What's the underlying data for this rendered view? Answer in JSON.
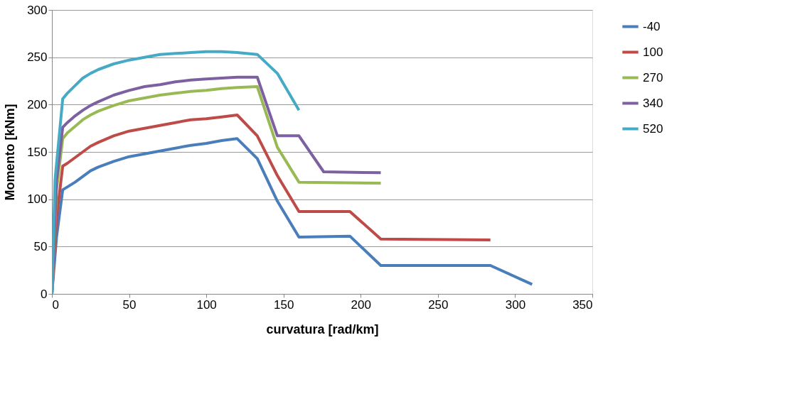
{
  "chart_data": {
    "type": "line",
    "xlabel": "curvatura [rad/km]",
    "ylabel": "Momento [kNm]",
    "xlim": [
      0,
      350
    ],
    "xticks": [
      0,
      50,
      100,
      150,
      200,
      250,
      300,
      350
    ],
    "ylim": [
      0,
      300
    ],
    "yticks": [
      0,
      50,
      100,
      150,
      200,
      250,
      300
    ],
    "grid": "y",
    "legend": "right",
    "marker": "none",
    "line_style": "solid",
    "series": [
      {
        "name": "-40",
        "color": "#4a7ebb",
        "x": [
          0,
          3,
          7,
          10,
          15,
          20,
          25,
          30,
          40,
          50,
          60,
          70,
          80,
          90,
          100,
          110,
          120,
          133,
          146,
          160,
          193,
          213,
          284,
          311
        ],
        "values": [
          0,
          60,
          110,
          113,
          118,
          124,
          130,
          134,
          140,
          145,
          148,
          151,
          154,
          157,
          159,
          162,
          164,
          143,
          98,
          60,
          61,
          30,
          30,
          10
        ]
      },
      {
        "name": "100",
        "color": "#be4b48",
        "x": [
          0,
          3,
          7,
          10,
          15,
          20,
          25,
          30,
          40,
          50,
          60,
          70,
          80,
          90,
          100,
          110,
          120,
          133,
          146,
          160,
          193,
          213,
          284
        ],
        "values": [
          0,
          80,
          135,
          138,
          144,
          150,
          156,
          160,
          167,
          172,
          175,
          178,
          181,
          184,
          185,
          187,
          189,
          167,
          125,
          87,
          87,
          58,
          57
        ]
      },
      {
        "name": "270",
        "color": "#98b954",
        "x": [
          0,
          3,
          7,
          10,
          15,
          20,
          25,
          30,
          40,
          50,
          60,
          70,
          80,
          90,
          100,
          110,
          120,
          133,
          146,
          160,
          213
        ],
        "values": [
          0,
          110,
          164,
          170,
          177,
          184,
          189,
          193,
          199,
          204,
          207,
          210,
          212,
          214,
          215,
          217,
          218,
          219,
          155,
          118,
          117
        ]
      },
      {
        "name": "340",
        "color": "#7d60a0",
        "x": [
          0,
          3,
          7,
          10,
          15,
          20,
          25,
          30,
          40,
          50,
          60,
          70,
          80,
          90,
          100,
          110,
          120,
          133,
          146,
          160,
          176,
          213
        ],
        "values": [
          0,
          120,
          176,
          181,
          188,
          194,
          199,
          203,
          210,
          215,
          219,
          221,
          224,
          226,
          227,
          228,
          229,
          229,
          167,
          167,
          129,
          128
        ]
      },
      {
        "name": "520",
        "color": "#46aac5",
        "x": [
          0,
          2,
          7,
          10,
          15,
          20,
          25,
          30,
          40,
          50,
          60,
          70,
          80,
          90,
          100,
          110,
          120,
          133,
          146,
          160
        ],
        "values": [
          0,
          120,
          206,
          212,
          220,
          228,
          233,
          237,
          243,
          247,
          250,
          253,
          254,
          255,
          256,
          256,
          255,
          253,
          233,
          194
        ]
      }
    ]
  }
}
